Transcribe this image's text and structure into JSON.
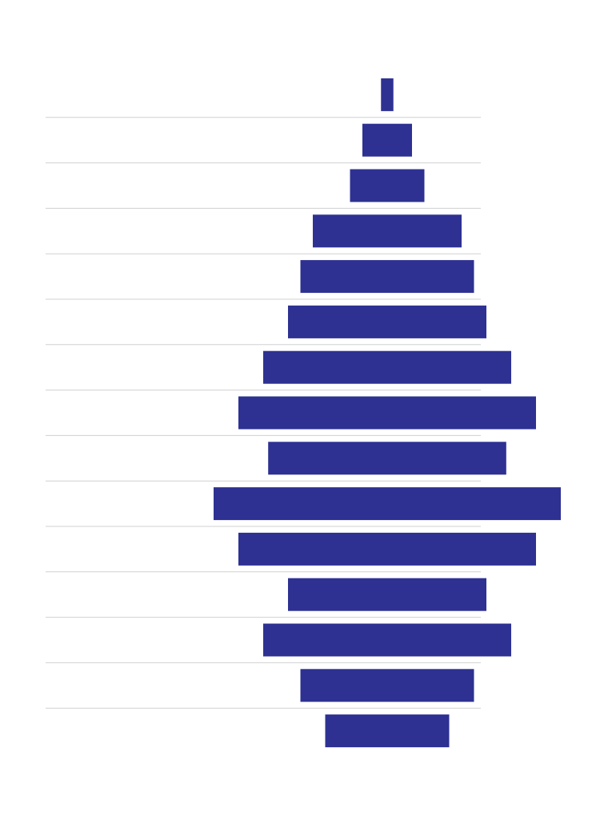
{
  "chart_data": {
    "type": "funnel",
    "values": [
      0.5,
      2,
      3,
      6,
      7,
      8,
      10,
      12,
      9.6,
      14,
      12,
      8,
      10,
      7,
      5
    ],
    "color": "#2e3192"
  }
}
